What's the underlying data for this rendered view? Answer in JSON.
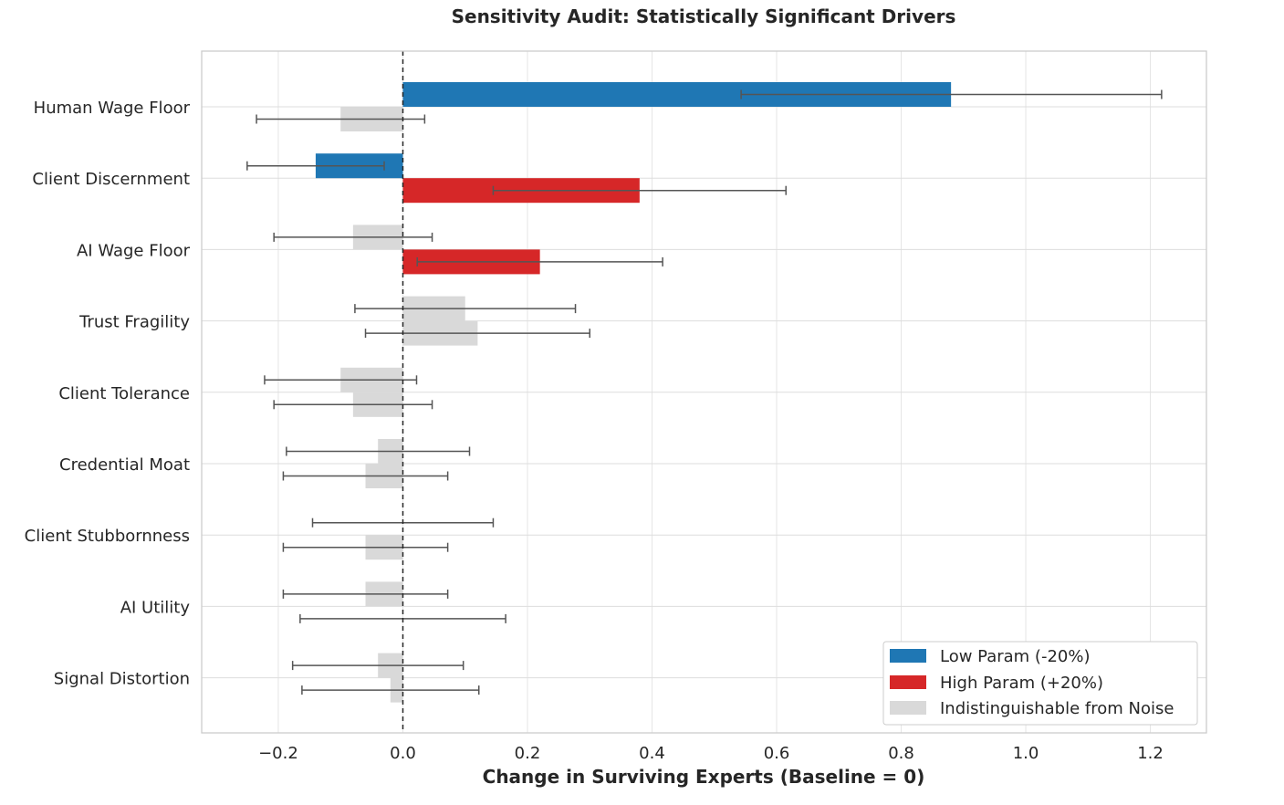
{
  "chart_data": {
    "type": "bar",
    "orientation": "horizontal",
    "title": "Sensitivity Audit: Statistically Significant Drivers",
    "xlabel": "Change in Surviving Experts (Baseline = 0)",
    "ylabel": "",
    "xlim": [
      -0.323,
      1.29
    ],
    "xticks": [
      -0.2,
      0.0,
      0.2,
      0.4,
      0.6,
      0.8,
      1.0,
      1.2
    ],
    "xtick_labels": [
      "−0.2",
      "0.0",
      "0.2",
      "0.4",
      "0.6",
      "0.8",
      "1.0",
      "1.2"
    ],
    "grid": true,
    "reference_line": {
      "x": 0,
      "style": "dashed"
    },
    "legend_position": "bottom-right",
    "categories": [
      "Human Wage Floor",
      "Client Discernment",
      "AI Wage Floor",
      "Trust Fragility",
      "Client Tolerance",
      "Credential Moat",
      "Client Stubbornness",
      "AI Utility",
      "Signal Distortion"
    ],
    "colors": {
      "low": "#1f77b4",
      "high": "#d62728",
      "noise": "#d9d9d9",
      "error": "#555555",
      "grid": "#e5e5e5",
      "axis": "#cccccc"
    },
    "legend": [
      {
        "key": "low",
        "label": "Low Param (-20%)"
      },
      {
        "key": "high",
        "label": "High Param (+20%)"
      },
      {
        "key": "noise",
        "label": "Indistinguishable from Noise"
      }
    ],
    "series": [
      {
        "name": "Low Param (-20%)",
        "values": [
          0.88,
          -0.14,
          -0.08,
          0.1,
          -0.1,
          -0.04,
          0.0,
          -0.06,
          -0.04
        ],
        "ci_low": [
          0.543,
          -0.25,
          -0.207,
          -0.077,
          -0.222,
          -0.187,
          -0.145,
          -0.192,
          -0.177
        ],
        "ci_high": [
          1.218,
          -0.03,
          0.047,
          0.277,
          0.022,
          0.107,
          0.145,
          0.072,
          0.097
        ],
        "significant": [
          true,
          true,
          false,
          false,
          false,
          false,
          false,
          false,
          false
        ]
      },
      {
        "name": "High Param (+20%)",
        "values": [
          -0.1,
          0.38,
          0.22,
          0.12,
          -0.08,
          -0.06,
          -0.06,
          0.0,
          -0.02
        ],
        "ci_low": [
          -0.235,
          0.145,
          0.023,
          -0.06,
          -0.207,
          -0.192,
          -0.192,
          -0.165,
          -0.162
        ],
        "ci_high": [
          0.035,
          0.615,
          0.417,
          0.3,
          0.047,
          0.072,
          0.072,
          0.165,
          0.122
        ],
        "significant": [
          false,
          true,
          true,
          false,
          false,
          false,
          false,
          false,
          false
        ]
      }
    ]
  }
}
